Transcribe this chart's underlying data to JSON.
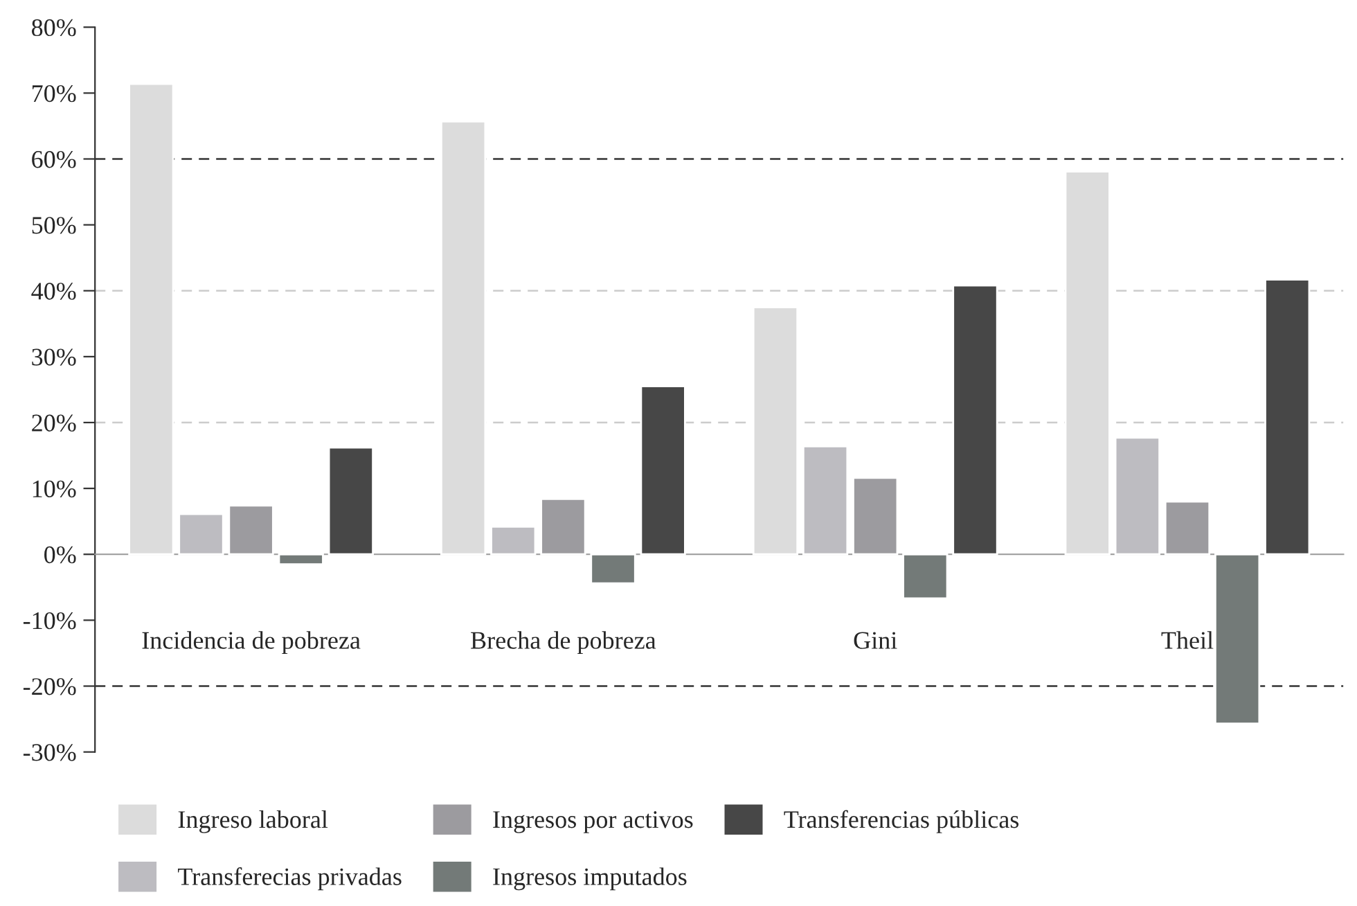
{
  "chart_data": {
    "type": "bar",
    "categories": [
      "Incidencia de pobreza",
      "Brecha de pobreza",
      "Gini",
      "Theil"
    ],
    "series": [
      {
        "name": "Ingreso laboral",
        "color": "#dcdcdc",
        "values": [
          71.4,
          65.7,
          37.5,
          58.1
        ]
      },
      {
        "name": "Transferecias privadas",
        "color": "#bdbcc1",
        "values": [
          6.1,
          4.2,
          16.4,
          17.7
        ]
      },
      {
        "name": "Ingresos por activos",
        "color": "#9c9b9f",
        "values": [
          7.4,
          8.4,
          11.6,
          8.0
        ]
      },
      {
        "name": "Ingresos imputados",
        "color": "#737a78",
        "values": [
          -1.5,
          -4.4,
          -6.7,
          -25.7
        ]
      },
      {
        "name": "Transferencias públicas",
        "color": "#474747",
        "values": [
          16.2,
          25.5,
          40.8,
          41.7
        ]
      }
    ],
    "ylim": [
      -30,
      80
    ],
    "yticks": [
      {
        "value": -30,
        "label": "-30%"
      },
      {
        "value": -20,
        "label": "-20%"
      },
      {
        "value": -10,
        "label": "-10%"
      },
      {
        "value": 0,
        "label": "0%"
      },
      {
        "value": 10,
        "label": "10%"
      },
      {
        "value": 20,
        "label": "20%"
      },
      {
        "value": 30,
        "label": "30%"
      },
      {
        "value": 40,
        "label": "40%"
      },
      {
        "value": 50,
        "label": "50%"
      },
      {
        "value": 60,
        "label": "60%"
      },
      {
        "value": 70,
        "label": "70%"
      },
      {
        "value": 80,
        "label": "80%"
      }
    ],
    "ref_lines": [
      {
        "axis": "y",
        "value": 60,
        "color": "#333333",
        "line_style": "dashed"
      },
      {
        "axis": "y",
        "value": 40,
        "color": "#cccccc",
        "line_style": "dashed"
      },
      {
        "axis": "y",
        "value": 20,
        "color": "#cccccc",
        "line_style": "dashed"
      },
      {
        "axis": "y",
        "value": -20,
        "color": "#333333",
        "line_style": "dashed"
      }
    ],
    "legend": "bottom"
  }
}
